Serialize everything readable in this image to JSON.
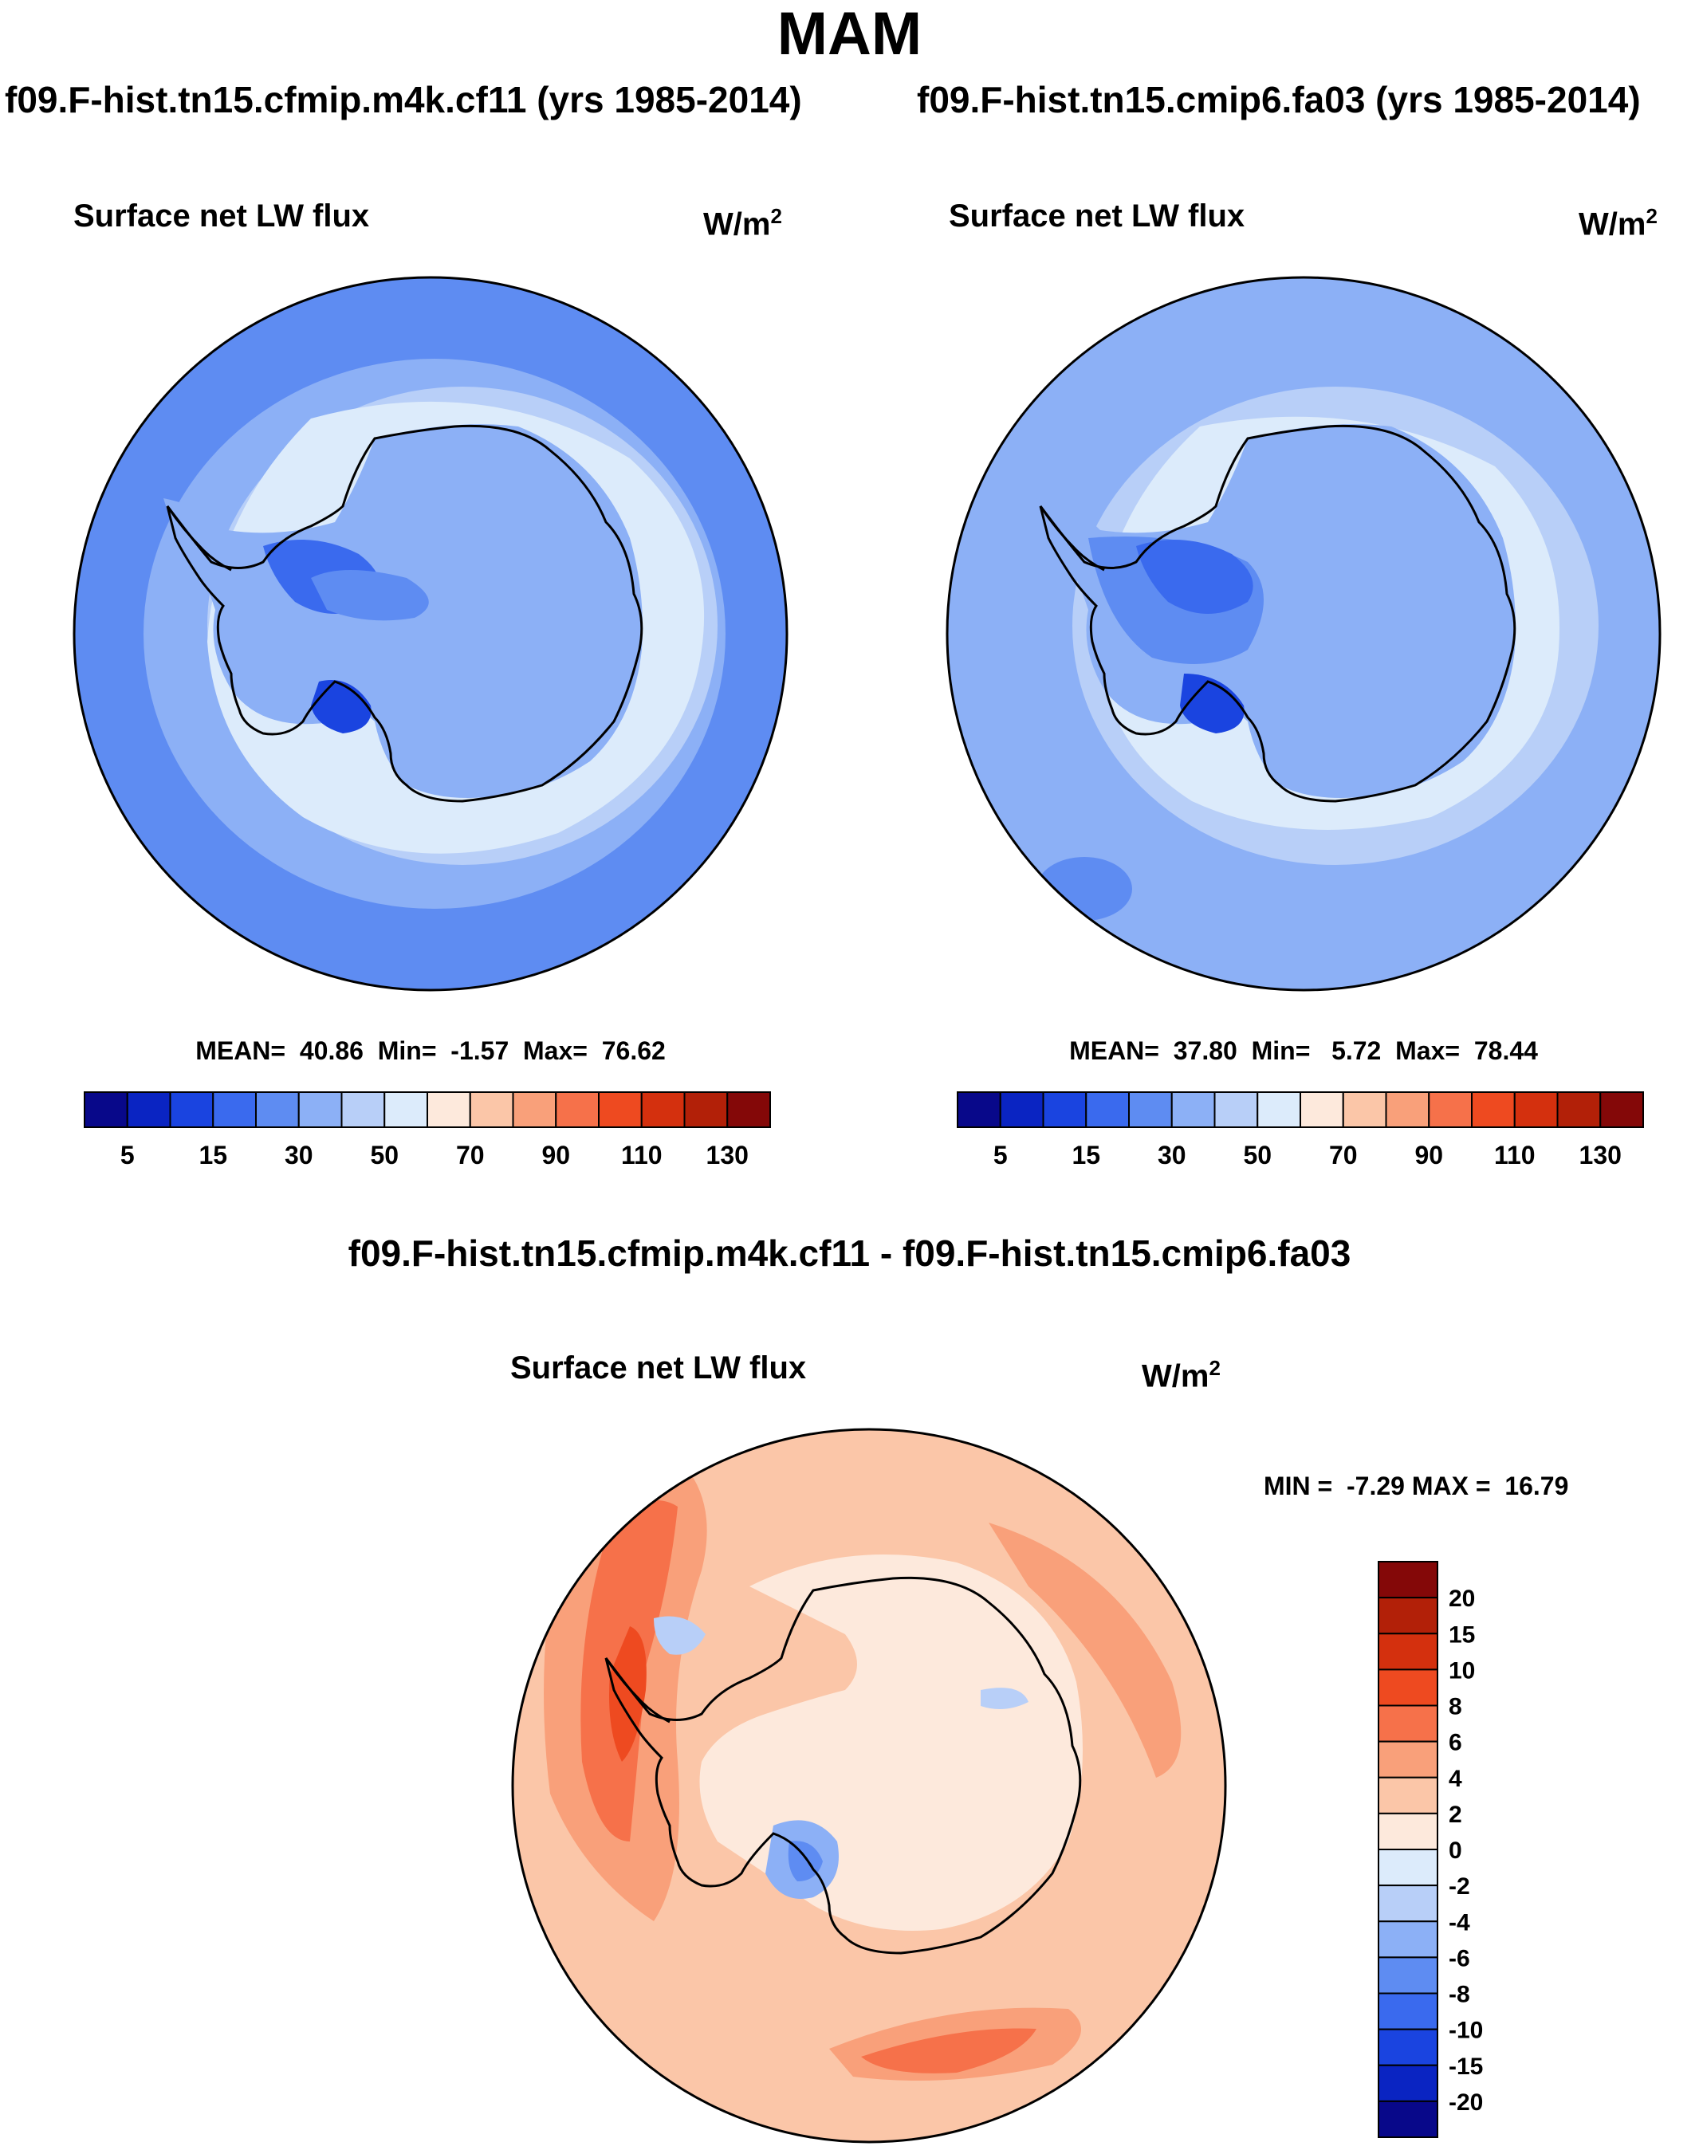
{
  "figure": {
    "season": "MAM",
    "left_title": "f09.F-hist.tn15.cfmip.m4k.cf11 (yrs 1985-2014)",
    "right_title": "f09.F-hist.tn15.cmip6.fa03 (yrs 1985-2014)",
    "diff_title": "f09.F-hist.tn15.cfmip.m4k.cf11 - f09.F-hist.tn15.cmip6.fa03"
  },
  "panels": {
    "left": {
      "variable": "Surface net LW flux",
      "units_base": "W/m",
      "units_exp": "2",
      "stats": {
        "mean_label": "MEAN=",
        "mean": "40.86",
        "min_label": "Min=",
        "min": "-1.57",
        "max_label": "Max=",
        "max": "76.62"
      }
    },
    "right": {
      "variable": "Surface net LW flux",
      "units_base": "W/m",
      "units_exp": "2",
      "stats": {
        "mean_label": "MEAN=",
        "mean": "37.80",
        "min_label": "Min=",
        "min": "5.72",
        "max_label": "Max=",
        "max": "78.44"
      }
    },
    "diff": {
      "variable": "Surface net LW flux",
      "units_base": "W/m",
      "units_exp": "2",
      "stats": {
        "min_label": "MIN =",
        "min": "-7.29",
        "max_label": "MAX =",
        "max": "16.79"
      }
    }
  },
  "colorbars": {
    "abs": {
      "labels": [
        "5",
        "15",
        "30",
        "50",
        "70",
        "90",
        "110",
        "130"
      ],
      "colors": [
        "#08088a",
        "#0a24c2",
        "#1a44e0",
        "#3a6aee",
        "#5e8cf2",
        "#8cb0f6",
        "#b8cff8",
        "#dcebfb",
        "#fde9dc",
        "#fbc6a8",
        "#f9a07a",
        "#f6714a",
        "#ee4a20",
        "#d4300e",
        "#b22008",
        "#840808"
      ]
    },
    "diff": {
      "labels": [
        "20",
        "15",
        "10",
        "8",
        "6",
        "4",
        "2",
        "0",
        "-2",
        "-4",
        "-6",
        "-8",
        "-10",
        "-15",
        "-20"
      ],
      "colors": [
        "#840808",
        "#b22008",
        "#d4300e",
        "#ee4a20",
        "#f6714a",
        "#f9a07a",
        "#fbc6a8",
        "#fde9dc",
        "#dcebfb",
        "#b8cff8",
        "#8cb0f6",
        "#5e8cf2",
        "#3a6aee",
        "#1a44e0",
        "#0a24c2",
        "#08088a"
      ]
    }
  }
}
